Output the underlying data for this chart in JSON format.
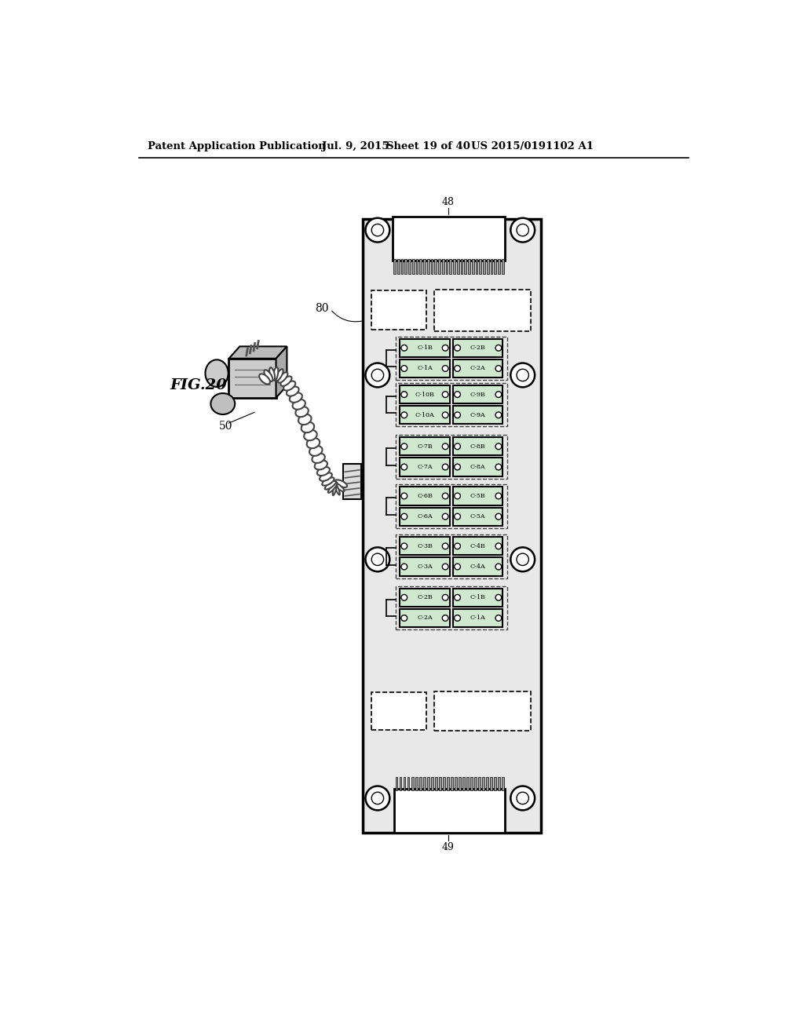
{
  "bg_color": "#ffffff",
  "header_text": "Patent Application Publication",
  "header_date": "Jul. 9, 2015",
  "header_sheet": "Sheet 19 of 40",
  "header_patent": "US 2015/0191102 A1",
  "figure_label": "FIG.20",
  "label_48": "48",
  "label_49": "49",
  "label_50": "50",
  "label_80": "80",
  "board_color": "#e8e8e8",
  "cell_color": "#d0e8d0",
  "row_configs": [
    [
      "C-1B",
      "C-2B",
      "C-1A",
      "C-2A"
    ],
    [
      "C-10B",
      "C-9B",
      "C-10A",
      "C-9A"
    ],
    [
      "C-7B",
      "C-8B",
      "C-7A",
      "C-8A"
    ],
    [
      "C-6B",
      "C-5B",
      "C-6A",
      "C-5A"
    ],
    [
      "C-3B",
      "C-4B",
      "C-3A",
      "C-4A"
    ],
    [
      "C-2B",
      "C-1B",
      "C-2A",
      "C-1A"
    ]
  ]
}
